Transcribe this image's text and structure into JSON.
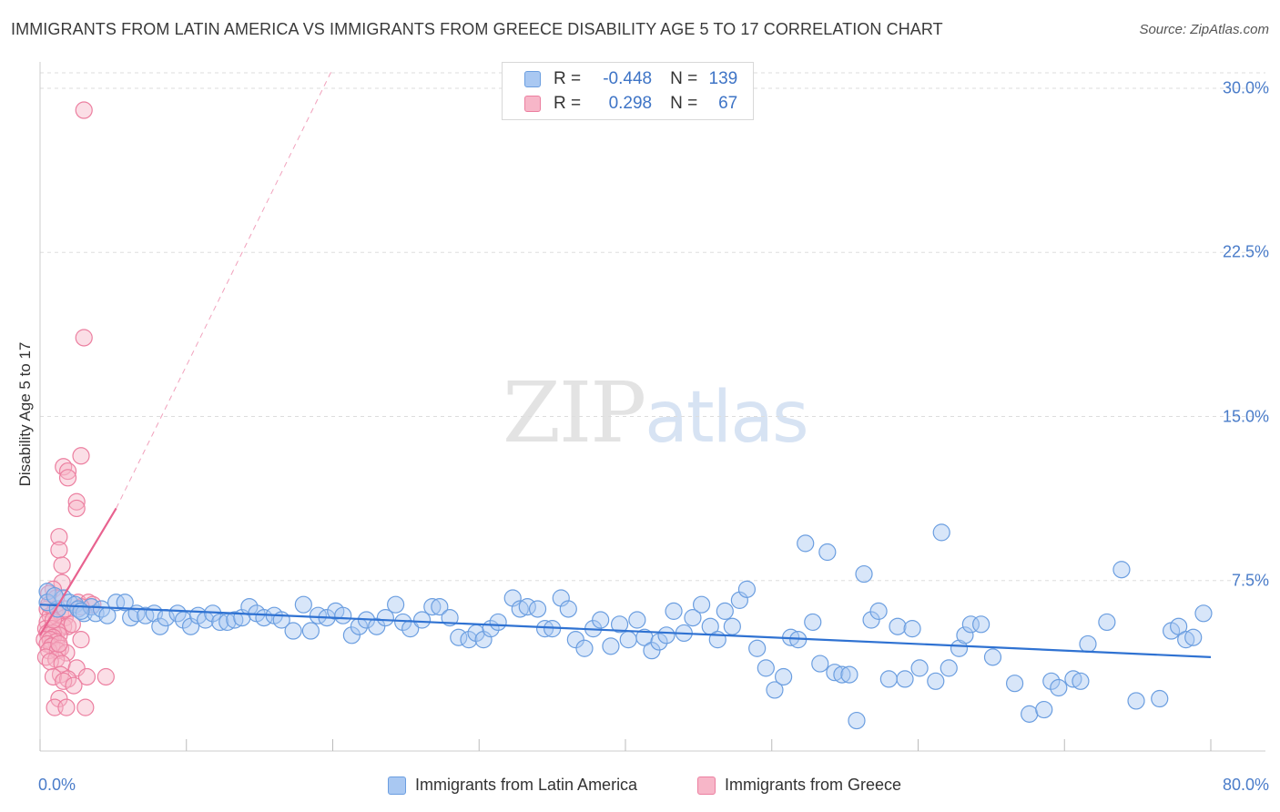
{
  "title": "IMMIGRANTS FROM LATIN AMERICA VS IMMIGRANTS FROM GREECE DISABILITY AGE 5 TO 17 CORRELATION CHART",
  "source": "Source: ZipAtlas.com",
  "watermark": {
    "zip": "ZIP",
    "atlas": "atlas"
  },
  "colors": {
    "blue_fill": "#a9c8f2",
    "blue_stroke": "#6b9ee0",
    "blue_line": "#2f72d2",
    "pink_fill": "#f7b6c8",
    "pink_stroke": "#ec7fa0",
    "pink_line": "#e8628f",
    "tick_text": "#4a7cc9",
    "grid": "#dddddd"
  },
  "legend": {
    "r_label": "R =",
    "n_label": "N =",
    "rows": [
      {
        "series": "blue",
        "r": "-0.448",
        "n": "139"
      },
      {
        "series": "pink",
        "r": "0.298",
        "n": "67"
      }
    ]
  },
  "chart_data": {
    "type": "scatter",
    "ylabel": "Disability Age 5 to 17",
    "xlim": [
      0,
      80
    ],
    "ylim": [
      0,
      31
    ],
    "x_tick_labels": {
      "min": "0.0%",
      "max": "80.0%"
    },
    "y_ticks": [
      {
        "value": 7.5,
        "label": "7.5%"
      },
      {
        "value": 15.0,
        "label": "15.0%"
      },
      {
        "value": 22.5,
        "label": "22.5%"
      },
      {
        "value": 30.0,
        "label": "30.0%"
      }
    ],
    "grid": true,
    "series": [
      {
        "name": "Immigrants from Latin America",
        "color": "blue",
        "trend": {
          "x0": 0,
          "y0": 6.4,
          "x1": 80,
          "y1": 4.0
        },
        "points": [
          [
            0.5,
            7.0
          ],
          [
            0.5,
            6.5
          ],
          [
            1.2,
            6.2
          ],
          [
            1.6,
            6.7
          ],
          [
            2.0,
            6.5
          ],
          [
            2.4,
            6.4
          ],
          [
            2.6,
            6.2
          ],
          [
            3.0,
            6.0
          ],
          [
            3.5,
            6.3
          ],
          [
            3.8,
            6.0
          ],
          [
            4.2,
            6.2
          ],
          [
            4.6,
            5.9
          ],
          [
            5.2,
            6.5
          ],
          [
            5.8,
            6.5
          ],
          [
            6.2,
            5.8
          ],
          [
            6.6,
            6.0
          ],
          [
            7.2,
            5.9
          ],
          [
            7.8,
            6.0
          ],
          [
            8.2,
            5.4
          ],
          [
            8.6,
            5.8
          ],
          [
            9.4,
            6.0
          ],
          [
            9.8,
            5.7
          ],
          [
            10.3,
            5.4
          ],
          [
            10.8,
            5.9
          ],
          [
            11.3,
            5.7
          ],
          [
            11.8,
            6.0
          ],
          [
            12.3,
            5.6
          ],
          [
            12.8,
            5.6
          ],
          [
            13.3,
            5.7
          ],
          [
            13.8,
            5.8
          ],
          [
            14.3,
            6.3
          ],
          [
            14.8,
            6.0
          ],
          [
            15.3,
            5.8
          ],
          [
            16.0,
            5.9
          ],
          [
            16.5,
            5.7
          ],
          [
            17.3,
            5.2
          ],
          [
            18.0,
            6.4
          ],
          [
            18.5,
            5.2
          ],
          [
            19.0,
            5.9
          ],
          [
            19.6,
            5.8
          ],
          [
            20.2,
            6.1
          ],
          [
            20.7,
            5.9
          ],
          [
            21.3,
            5.0
          ],
          [
            21.8,
            5.4
          ],
          [
            22.3,
            5.7
          ],
          [
            23.0,
            5.4
          ],
          [
            23.6,
            5.8
          ],
          [
            24.3,
            6.4
          ],
          [
            24.8,
            5.6
          ],
          [
            25.3,
            5.3
          ],
          [
            26.1,
            5.7
          ],
          [
            26.8,
            6.3
          ],
          [
            27.3,
            6.3
          ],
          [
            28.0,
            5.8
          ],
          [
            28.6,
            4.9
          ],
          [
            29.3,
            4.8
          ],
          [
            29.8,
            5.1
          ],
          [
            30.3,
            4.8
          ],
          [
            30.8,
            5.3
          ],
          [
            31.3,
            5.6
          ],
          [
            32.3,
            6.7
          ],
          [
            32.8,
            6.2
          ],
          [
            33.3,
            6.3
          ],
          [
            34.0,
            6.2
          ],
          [
            34.5,
            5.3
          ],
          [
            35.0,
            5.3
          ],
          [
            35.6,
            6.7
          ],
          [
            36.1,
            6.2
          ],
          [
            36.6,
            4.8
          ],
          [
            37.2,
            4.4
          ],
          [
            37.8,
            5.3
          ],
          [
            38.3,
            5.7
          ],
          [
            39.0,
            4.5
          ],
          [
            39.6,
            5.5
          ],
          [
            40.2,
            4.8
          ],
          [
            40.8,
            5.7
          ],
          [
            41.3,
            4.9
          ],
          [
            41.8,
            4.3
          ],
          [
            42.3,
            4.7
          ],
          [
            42.8,
            5.0
          ],
          [
            43.3,
            6.1
          ],
          [
            44.0,
            5.1
          ],
          [
            44.6,
            5.8
          ],
          [
            45.2,
            6.4
          ],
          [
            45.8,
            5.4
          ],
          [
            46.3,
            4.8
          ],
          [
            46.8,
            6.1
          ],
          [
            47.3,
            5.4
          ],
          [
            47.8,
            6.6
          ],
          [
            48.3,
            7.1
          ],
          [
            49.0,
            4.4
          ],
          [
            49.6,
            3.5
          ],
          [
            50.2,
            2.5
          ],
          [
            50.8,
            3.1
          ],
          [
            51.3,
            4.9
          ],
          [
            51.8,
            4.8
          ],
          [
            52.3,
            9.2
          ],
          [
            52.8,
            5.6
          ],
          [
            53.3,
            3.7
          ],
          [
            53.8,
            8.8
          ],
          [
            54.3,
            3.3
          ],
          [
            54.8,
            3.2
          ],
          [
            55.3,
            3.2
          ],
          [
            55.8,
            1.1
          ],
          [
            56.3,
            7.8
          ],
          [
            56.8,
            5.7
          ],
          [
            57.3,
            6.1
          ],
          [
            58.0,
            3.0
          ],
          [
            58.6,
            5.4
          ],
          [
            59.1,
            3.0
          ],
          [
            59.6,
            5.3
          ],
          [
            60.1,
            3.5
          ],
          [
            61.2,
            2.9
          ],
          [
            61.6,
            9.7
          ],
          [
            62.1,
            3.5
          ],
          [
            62.8,
            4.4
          ],
          [
            63.2,
            5.0
          ],
          [
            63.6,
            5.5
          ],
          [
            64.3,
            5.5
          ],
          [
            65.1,
            4.0
          ],
          [
            66.6,
            2.8
          ],
          [
            67.6,
            1.4
          ],
          [
            68.6,
            1.6
          ],
          [
            69.1,
            2.9
          ],
          [
            69.6,
            2.6
          ],
          [
            70.6,
            3.0
          ],
          [
            71.1,
            2.9
          ],
          [
            71.6,
            4.6
          ],
          [
            72.9,
            5.6
          ],
          [
            73.9,
            8.0
          ],
          [
            74.9,
            2.0
          ],
          [
            76.5,
            2.1
          ],
          [
            77.3,
            5.2
          ],
          [
            77.8,
            5.4
          ],
          [
            78.3,
            4.8
          ],
          [
            78.8,
            4.9
          ],
          [
            79.5,
            6.0
          ],
          [
            1.0,
            6.8
          ],
          [
            2.8,
            6.1
          ]
        ]
      },
      {
        "name": "Immigrants from Greece",
        "color": "pink",
        "trend": {
          "x0": 0,
          "y0": 5.0,
          "x1": 5.2,
          "y1": 10.8
        },
        "trend_dashed": {
          "x0": 5.2,
          "y0": 10.8,
          "x1": 20.0,
          "y1": 30.9
        },
        "points": [
          [
            3.0,
            29.0
          ],
          [
            3.0,
            18.6
          ],
          [
            2.8,
            13.2
          ],
          [
            1.6,
            12.7
          ],
          [
            1.9,
            12.5
          ],
          [
            1.9,
            12.2
          ],
          [
            2.5,
            11.1
          ],
          [
            2.5,
            10.8
          ],
          [
            1.3,
            9.5
          ],
          [
            1.3,
            8.9
          ],
          [
            1.5,
            8.2
          ],
          [
            1.5,
            7.4
          ],
          [
            0.9,
            7.1
          ],
          [
            0.6,
            6.9
          ],
          [
            1.1,
            6.7
          ],
          [
            2.6,
            6.5
          ],
          [
            3.3,
            6.5
          ],
          [
            3.6,
            6.4
          ],
          [
            2.8,
            6.3
          ],
          [
            0.5,
            6.2
          ],
          [
            1.0,
            6.1
          ],
          [
            1.4,
            6.0
          ],
          [
            0.7,
            5.9
          ],
          [
            1.7,
            5.8
          ],
          [
            0.5,
            5.6
          ],
          [
            1.1,
            5.6
          ],
          [
            1.6,
            5.4
          ],
          [
            1.9,
            5.4
          ],
          [
            0.4,
            5.3
          ],
          [
            0.8,
            5.3
          ],
          [
            1.2,
            5.2
          ],
          [
            0.5,
            5.1
          ],
          [
            0.9,
            5.1
          ],
          [
            1.3,
            5.0
          ],
          [
            0.6,
            5.0
          ],
          [
            0.9,
            4.9
          ],
          [
            0.3,
            4.8
          ],
          [
            0.7,
            4.8
          ],
          [
            1.1,
            4.7
          ],
          [
            2.8,
            4.8
          ],
          [
            0.5,
            4.6
          ],
          [
            0.8,
            4.5
          ],
          [
            1.4,
            4.4
          ],
          [
            0.6,
            4.3
          ],
          [
            1.2,
            4.3
          ],
          [
            1.8,
            4.2
          ],
          [
            0.4,
            4.0
          ],
          [
            1.1,
            3.9
          ],
          [
            0.7,
            3.8
          ],
          [
            1.5,
            3.7
          ],
          [
            2.5,
            3.5
          ],
          [
            1.4,
            3.2
          ],
          [
            0.9,
            3.1
          ],
          [
            1.9,
            3.0
          ],
          [
            3.2,
            3.1
          ],
          [
            4.5,
            3.1
          ],
          [
            1.6,
            2.9
          ],
          [
            2.3,
            2.7
          ],
          [
            1.3,
            2.1
          ],
          [
            1.0,
            1.7
          ],
          [
            1.8,
            1.7
          ],
          [
            3.1,
            1.7
          ],
          [
            0.9,
            5.7
          ],
          [
            1.3,
            4.6
          ],
          [
            0.6,
            6.4
          ],
          [
            1.7,
            6.2
          ],
          [
            2.2,
            5.5
          ]
        ]
      }
    ]
  },
  "bottom_legend": [
    "Immigrants from Latin America",
    "Immigrants from Greece"
  ]
}
